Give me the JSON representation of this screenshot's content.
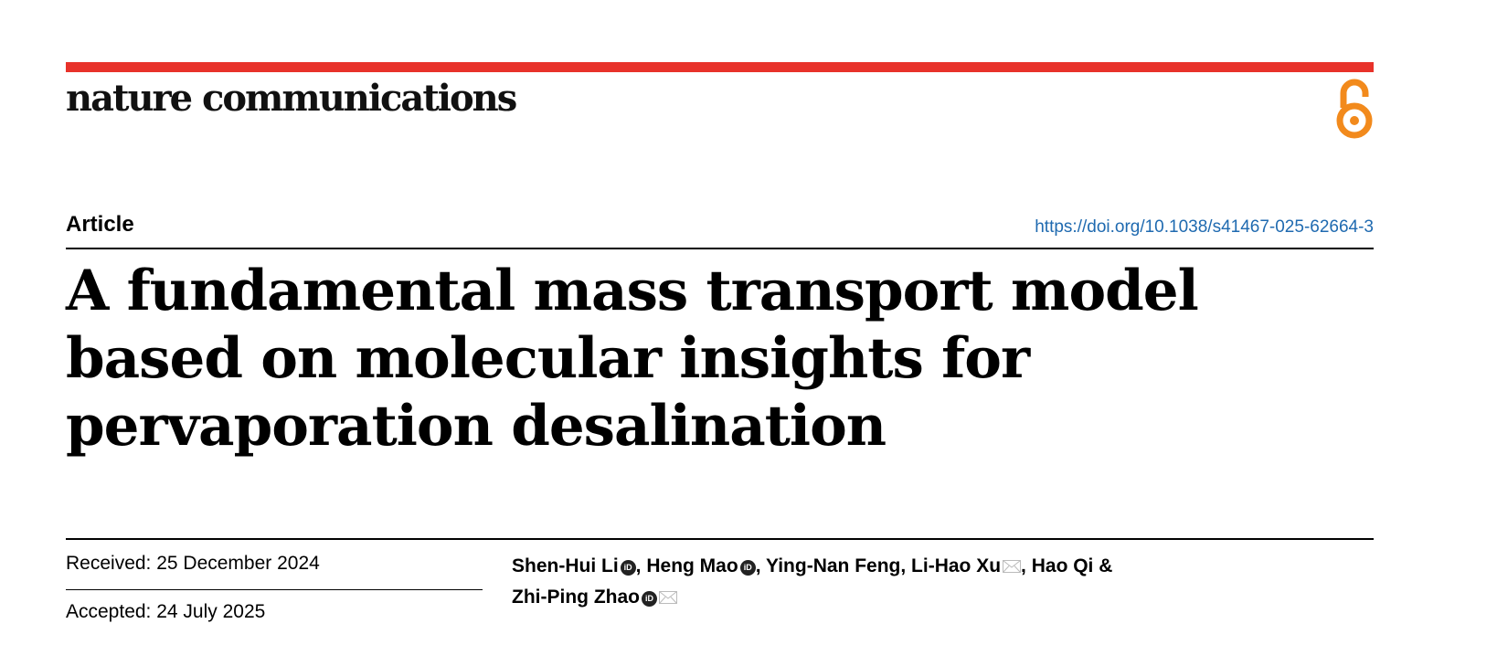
{
  "journal": {
    "name": "nature communications",
    "accent": "#e8322a",
    "open_access_icon": "open-access-lock-icon",
    "open_access_color": "#f28a1c"
  },
  "article": {
    "type": "Article",
    "doi": "https://doi.org/10.1038/s41467-025-62664-3",
    "title": "A fundamental mass transport model based on molecular insights for pervaporation desalination",
    "received": "Received: 25 December 2024",
    "accepted": "Accepted: 24 July 2025",
    "authors": [
      {
        "name": "Shen-Hui Li",
        "orcid": true,
        "corresponding": false,
        "sep": ", "
      },
      {
        "name": "Heng Mao",
        "orcid": true,
        "corresponding": false,
        "sep": ", "
      },
      {
        "name": "Ying-Nan Feng",
        "orcid": false,
        "corresponding": false,
        "sep": ", "
      },
      {
        "name": "Li-Hao Xu",
        "orcid": false,
        "corresponding": true,
        "sep": ", "
      },
      {
        "name": "Hao Qi",
        "orcid": false,
        "corresponding": false,
        "sep": " & "
      },
      {
        "name": "Zhi-Ping Zhao",
        "orcid": true,
        "corresponding": true,
        "sep": ""
      }
    ]
  }
}
